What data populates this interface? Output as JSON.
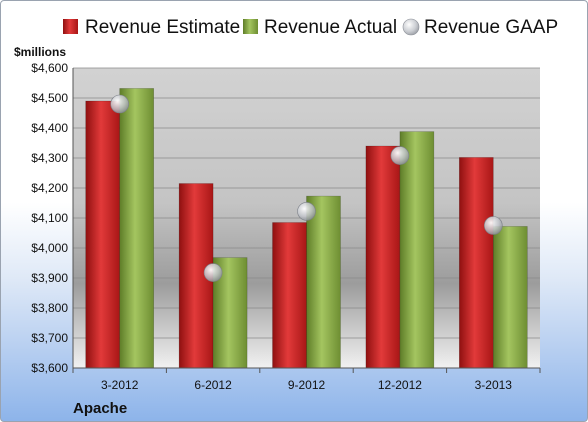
{
  "chart_data": {
    "type": "bar",
    "categories": [
      "3-2012",
      "6-2012",
      "9-2012",
      "12-2012",
      "3-2013"
    ],
    "series": [
      {
        "name": "Revenue Estimate",
        "color": "#d42a2a",
        "values": [
          4490,
          4215,
          4085,
          4340,
          4302
        ]
      },
      {
        "name": "Revenue Actual",
        "color": "#8cb04a",
        "values": [
          4532,
          3968,
          4173,
          4388,
          4072
        ]
      },
      {
        "name": "Revenue GAAP",
        "color": "#b8bcc4",
        "kind": "marker",
        "values": [
          4480,
          3918,
          4122,
          4308,
          4075
        ]
      }
    ],
    "ylabel": "$millions",
    "ylim": [
      3600,
      4600
    ],
    "yticks": [
      "$3,600",
      "$3,700",
      "$3,800",
      "$3,900",
      "$4,000",
      "$4,100",
      "$4,200",
      "$4,300",
      "$4,400",
      "$4,500",
      "$4,600"
    ],
    "ytick_values": [
      3600,
      3700,
      3800,
      3900,
      4000,
      4100,
      4200,
      4300,
      4400,
      4500,
      4600
    ],
    "legend_position": "top",
    "grid": true,
    "footer_label": "Apache"
  }
}
